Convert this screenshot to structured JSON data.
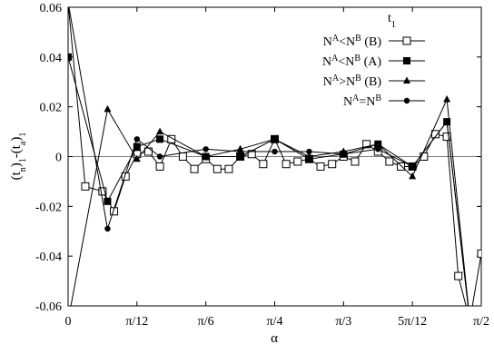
{
  "chart_data": {
    "type": "line",
    "xlabel": "α",
    "ylabel": "(t_n)_1-(t_a)_1",
    "xlim": [
      0,
      1.5708
    ],
    "ylim": [
      -0.06,
      0.06
    ],
    "x_ticks": [
      {
        "value": 0,
        "label": "0"
      },
      {
        "value": 0.2618,
        "label": "π/12"
      },
      {
        "value": 0.5236,
        "label": "π/6"
      },
      {
        "value": 0.7854,
        "label": "π/4"
      },
      {
        "value": 1.0472,
        "label": "π/3"
      },
      {
        "value": 1.309,
        "label": "5π/12"
      },
      {
        "value": 1.5708,
        "label": "π/2"
      }
    ],
    "y_ticks": [
      {
        "value": -0.06,
        "label": "-0.06"
      },
      {
        "value": -0.04,
        "label": "-0.04"
      },
      {
        "value": -0.02,
        "label": "-0.02"
      },
      {
        "value": 0,
        "label": "0"
      },
      {
        "value": 0.02,
        "label": "0.02"
      },
      {
        "value": 0.04,
        "label": "0.04"
      },
      {
        "value": 0.06,
        "label": "0.06"
      }
    ],
    "grid": false,
    "legend": {
      "position": "top-right",
      "title": "t_1"
    },
    "series": [
      {
        "name": "N^A<N^B (B)",
        "marker": "open-square",
        "x": [
          0,
          0.0654,
          0.1309,
          0.1745,
          0.2182,
          0.2618,
          0.3054,
          0.3491,
          0.3927,
          0.4363,
          0.48,
          0.5236,
          0.5672,
          0.6109,
          0.6545,
          0.6981,
          0.7418,
          0.7854,
          0.829,
          0.8727,
          0.9163,
          0.9599,
          1.0036,
          1.0472,
          1.0908,
          1.1345,
          1.1781,
          1.2217,
          1.2654,
          1.309,
          1.3526,
          1.3963,
          1.4399,
          1.4835,
          1.5272,
          1.5708
        ],
        "y": [
          0.062,
          -0.012,
          -0.014,
          -0.022,
          -0.008,
          0.001,
          0.002,
          -0.004,
          0.007,
          0.0,
          -0.005,
          -0.001,
          -0.005,
          -0.005,
          0.0,
          0.001,
          -0.003,
          0.007,
          -0.003,
          -0.002,
          -0.001,
          -0.004,
          -0.003,
          0.0,
          -0.002,
          0.005,
          0.002,
          -0.002,
          -0.004,
          -0.004,
          0.0,
          0.009,
          0.008,
          -0.048,
          -0.066,
          -0.039
        ]
      },
      {
        "name": "N^A<N^B (A)",
        "marker": "filled-square",
        "x": [
          0,
          0.15,
          0.2618,
          0.349,
          0.5236,
          0.6545,
          0.7854,
          0.9163,
          1.0472,
          1.1781,
          1.309,
          1.44,
          1.5272
        ],
        "y": [
          0.04,
          -0.018,
          0.004,
          0.007,
          0.0,
          0.0,
          0.007,
          -0.001,
          0.001,
          0.005,
          -0.004,
          0.014,
          -0.066
        ]
      },
      {
        "name": "N^A>N^B (B)",
        "marker": "filled-triangle",
        "x": [
          0,
          0.15,
          0.2618,
          0.349,
          0.5236,
          0.6545,
          0.7854,
          0.9163,
          1.0472,
          1.1781,
          1.309,
          1.44,
          1.5272
        ],
        "y": [
          -0.066,
          0.019,
          -0.001,
          0.01,
          0.0,
          0.003,
          0.007,
          0.0,
          0.002,
          0.005,
          -0.008,
          0.023,
          -0.066
        ]
      },
      {
        "name": "N^A=N^B",
        "marker": "filled-circle",
        "x": [
          0,
          0.15,
          0.2618,
          0.349,
          0.5236,
          0.6545,
          0.7854,
          0.9163,
          1.0472,
          1.1781,
          1.309,
          1.44,
          1.5272
        ],
        "y": [
          0.062,
          -0.029,
          0.007,
          0.0,
          0.003,
          0.002,
          0.002,
          0.002,
          0.001,
          0.003,
          -0.004,
          0.014,
          -0.066
        ]
      }
    ]
  }
}
